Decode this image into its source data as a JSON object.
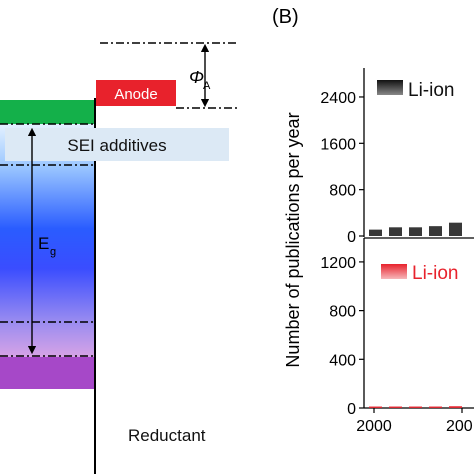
{
  "panel_b_label": "(B)",
  "energy_diagram": {
    "anode_label": "Anode",
    "phi_symbol": "Φ",
    "phi_subscript": "A",
    "sei_label": "SEI additives",
    "eg_symbol": "E",
    "eg_subscript": "g",
    "reductant_label": "Reductant",
    "colors": {
      "anode": "#e8222c",
      "lumo_band": "#14b04a",
      "homo_band": "#a648c8",
      "sei_box": "#dce9f5",
      "gradient_top": "#d9ecff",
      "gradient_mid": "#2155ff",
      "gradient_bottom": "#b77fe0"
    }
  },
  "chart_data": {
    "type": "bar",
    "ylabel": "Number of publications per year",
    "x_tick_labels": [
      "2000",
      "200"
    ],
    "panels": [
      {
        "legend": "Li-ion",
        "color": "#222222",
        "yticks": [
          "0",
          "800",
          "1600",
          "2400"
        ],
        "ylim": [
          0,
          2900
        ],
        "x": [
          2000,
          2001,
          2002,
          2003,
          2004
        ],
        "values": [
          110,
          150,
          150,
          170,
          230
        ]
      },
      {
        "legend": "Li-ion",
        "color": "#e8222c",
        "yticks": [
          "0",
          "400",
          "800",
          "1200"
        ],
        "ylim": [
          0,
          1380
        ],
        "x": [
          2000,
          2001,
          2002,
          2003,
          2004
        ],
        "values": [
          5,
          8,
          10,
          12,
          15
        ]
      }
    ]
  }
}
